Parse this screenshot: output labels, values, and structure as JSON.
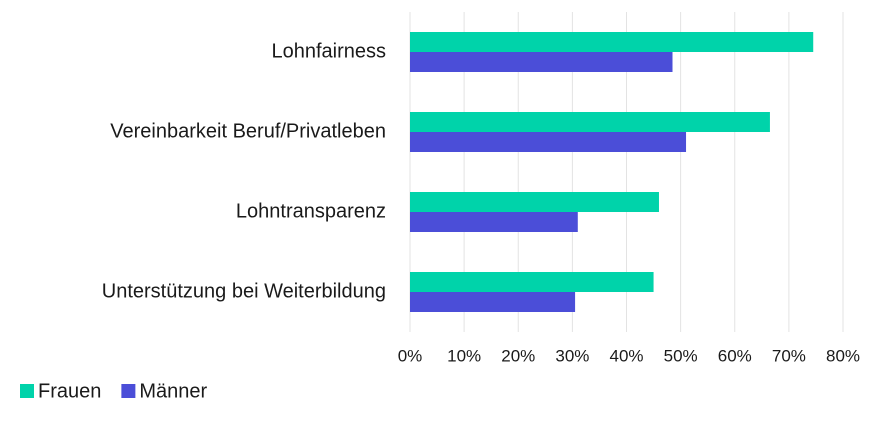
{
  "chart_data": {
    "type": "barh",
    "categories": [
      "Lohnfairness",
      "Vereinbarkeit Beruf/Privatleben",
      "Lohntransparenz",
      "Unterstützung bei Weiterbildung"
    ],
    "series": [
      {
        "name": "Frauen",
        "color": "#00d3aa",
        "values": [
          74.5,
          66.5,
          46,
          45
        ]
      },
      {
        "name": "Männer",
        "color": "#4b4ed8",
        "values": [
          48.5,
          51,
          31,
          30.5
        ]
      }
    ],
    "xlim": [
      0,
      80
    ],
    "xticks": [
      {
        "value": 0,
        "label": "0%"
      },
      {
        "value": 10,
        "label": "10%"
      },
      {
        "value": 20,
        "label": "20%"
      },
      {
        "value": 30,
        "label": "30%"
      },
      {
        "value": 40,
        "label": "40%"
      },
      {
        "value": 50,
        "label": "50%"
      },
      {
        "value": 60,
        "label": "60%"
      },
      {
        "value": 70,
        "label": "70%"
      },
      {
        "value": 80,
        "label": "80%"
      }
    ],
    "grid": true,
    "legend": "bottom-left"
  }
}
